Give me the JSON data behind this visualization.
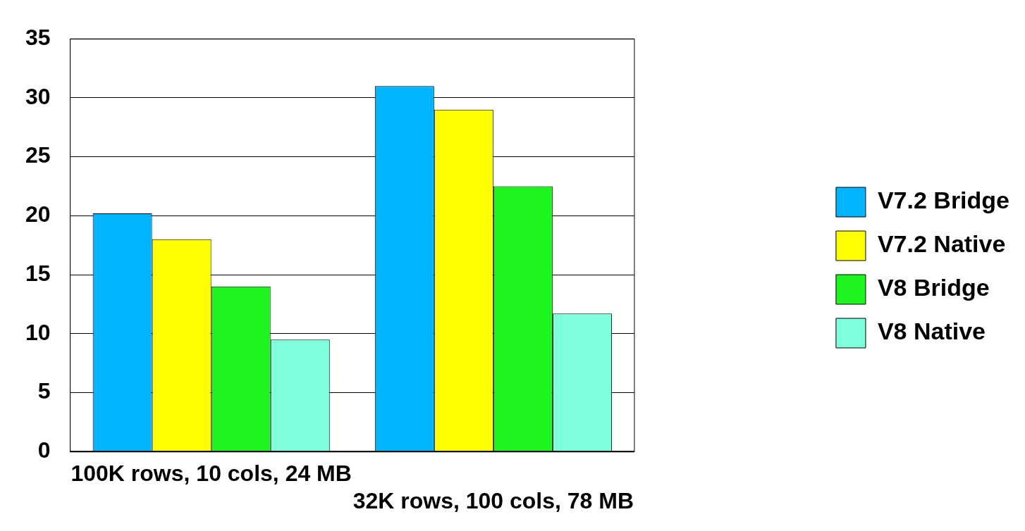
{
  "chart_data": {
    "type": "bar",
    "categories": [
      "100K rows, 10 cols, 24 MB",
      "32K rows, 100 cols, 78 MB"
    ],
    "series": [
      {
        "name": "V7.2 Bridge",
        "color": "#00b4ff",
        "values": [
          20.2,
          31
        ]
      },
      {
        "name": "V7.2 Native",
        "color": "#ffff00",
        "values": [
          18,
          29
        ]
      },
      {
        "name": "V8 Bridge",
        "color": "#1ef51e",
        "values": [
          14,
          22.5
        ]
      },
      {
        "name": "V8 Native",
        "color": "#7fffdc",
        "values": [
          9.5,
          11.7
        ]
      }
    ],
    "ylim": [
      0,
      35
    ],
    "yticks": [
      0,
      5,
      10,
      15,
      20,
      25,
      30,
      35
    ],
    "grid": "y",
    "legend": "right"
  }
}
